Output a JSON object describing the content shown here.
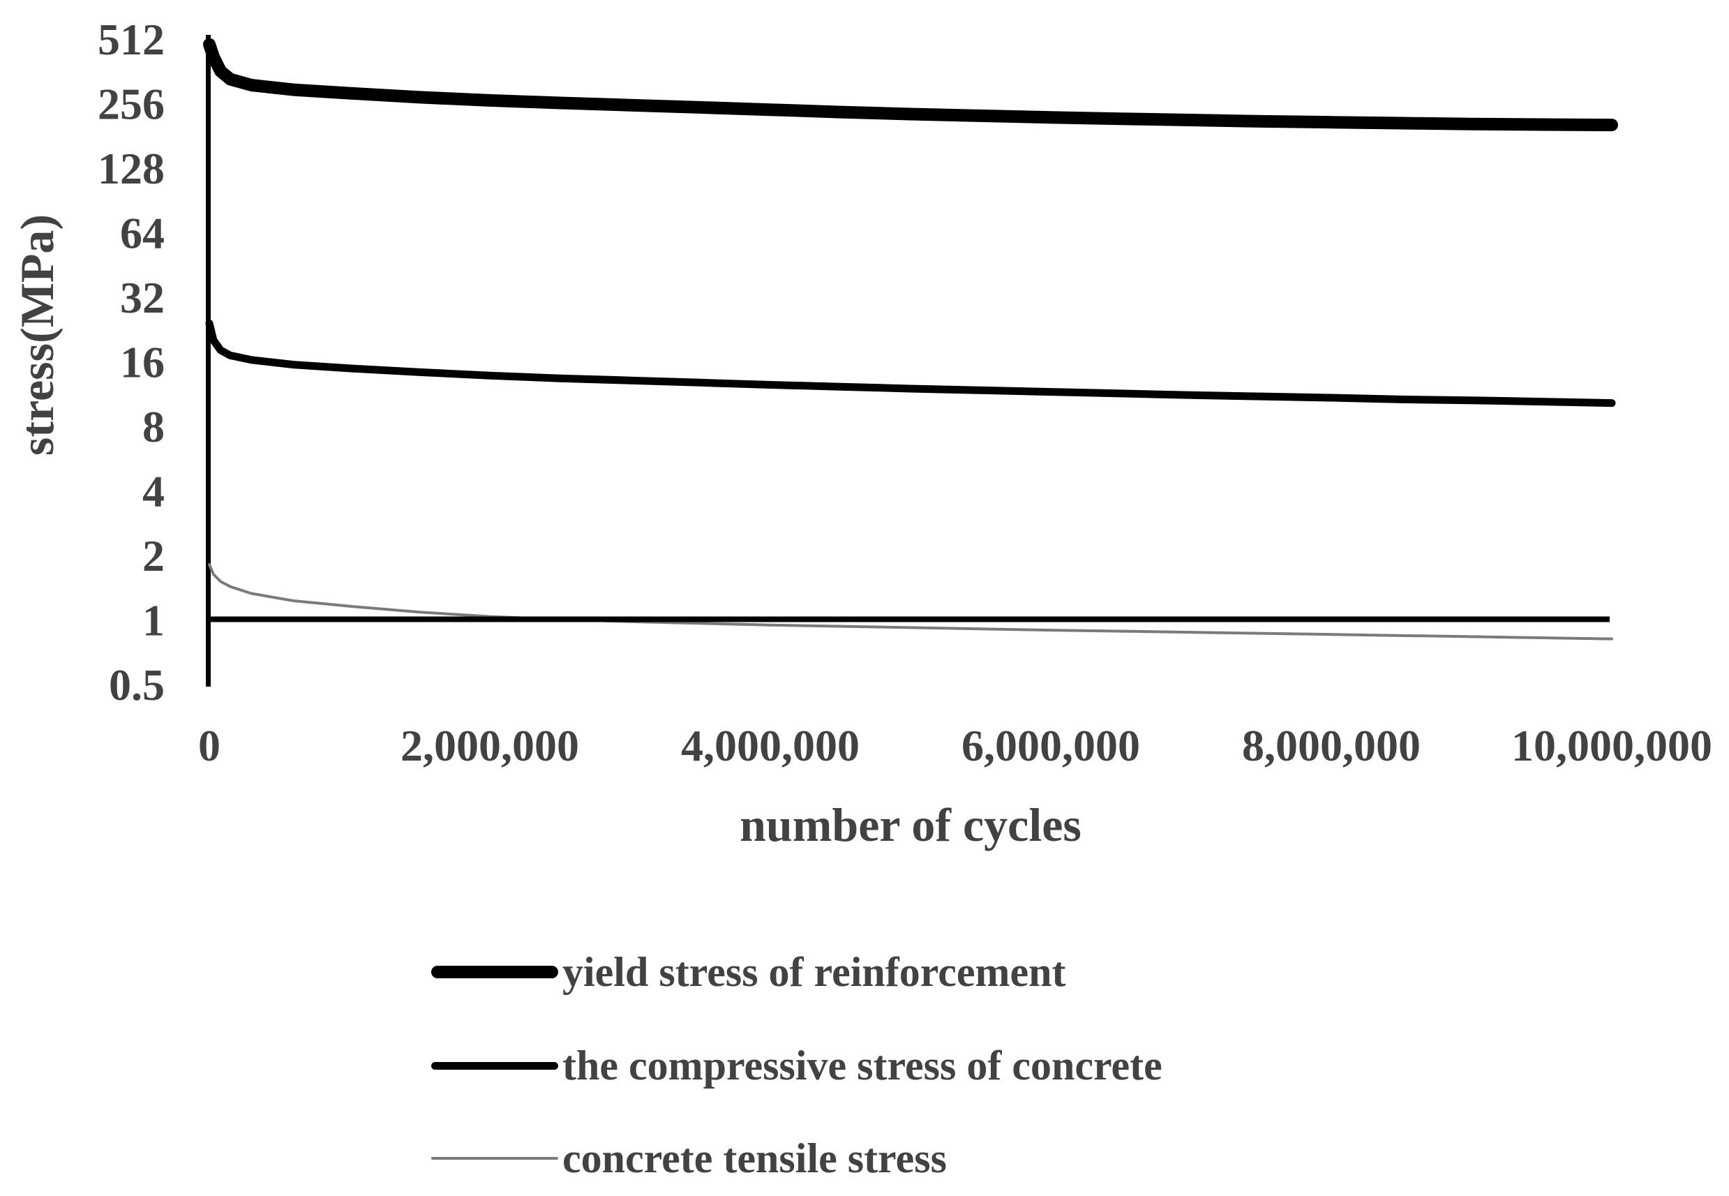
{
  "page": {
    "background_color": "#ffffff",
    "text_color": "#424242",
    "axis_line_color": "#000000"
  },
  "chart_data": {
    "type": "line",
    "title": "",
    "xlabel": "number of cycles",
    "ylabel": "stress(MPa)",
    "grid": "off",
    "legend_position": "bottom-left",
    "x_axis": {
      "min": 0,
      "max": 10000000,
      "tick_values": [
        0,
        2000000,
        4000000,
        6000000,
        8000000,
        10000000
      ],
      "tick_labels": [
        "0",
        "2,000,000",
        "4,000,000",
        "6,000,000",
        "8,000,000",
        "10,000,000"
      ]
    },
    "y_axis": {
      "scale": "log2",
      "min": 0.5,
      "max": 512,
      "axis_crosses_at": 1,
      "tick_values": [
        512,
        256,
        128,
        64,
        32,
        16,
        8,
        4,
        2,
        1,
        0.5
      ],
      "tick_labels": [
        "512",
        "256",
        "128",
        "64",
        "32",
        "16",
        "8",
        "4",
        "2",
        "1",
        "0.5"
      ]
    },
    "series": [
      {
        "name": "yield stress of reinforcement",
        "color": "#000000",
        "stroke_width": 18,
        "points": [
          [
            0,
            480
          ],
          [
            30000,
            420
          ],
          [
            80000,
            360
          ],
          [
            150000,
            330
          ],
          [
            300000,
            310
          ],
          [
            600000,
            295
          ],
          [
            1000000,
            284
          ],
          [
            1500000,
            272
          ],
          [
            2000000,
            263
          ],
          [
            2500000,
            256
          ],
          [
            3000000,
            250
          ],
          [
            3500000,
            244
          ],
          [
            4000000,
            238
          ],
          [
            4500000,
            232
          ],
          [
            5000000,
            227
          ],
          [
            5500000,
            223
          ],
          [
            6000000,
            219
          ],
          [
            6500000,
            216
          ],
          [
            7000000,
            213
          ],
          [
            7500000,
            210
          ],
          [
            8000000,
            208
          ],
          [
            8500000,
            206
          ],
          [
            9000000,
            204
          ],
          [
            9500000,
            203
          ],
          [
            10000000,
            202
          ]
        ]
      },
      {
        "name": "the compressive stress of concrete",
        "color": "#000000",
        "stroke_width": 11,
        "points": [
          [
            0,
            24
          ],
          [
            30000,
            20
          ],
          [
            80000,
            18
          ],
          [
            150000,
            17
          ],
          [
            300000,
            16.2
          ],
          [
            600000,
            15.4
          ],
          [
            1000000,
            14.8
          ],
          [
            1500000,
            14.2
          ],
          [
            2000000,
            13.7
          ],
          [
            2500000,
            13.3
          ],
          [
            3000000,
            13.0
          ],
          [
            3500000,
            12.7
          ],
          [
            4000000,
            12.4
          ],
          [
            4500000,
            12.15
          ],
          [
            5000000,
            11.9
          ],
          [
            5500000,
            11.7
          ],
          [
            6000000,
            11.5
          ],
          [
            6500000,
            11.3
          ],
          [
            7000000,
            11.1
          ],
          [
            7500000,
            10.95
          ],
          [
            8000000,
            10.8
          ],
          [
            8500000,
            10.6
          ],
          [
            9000000,
            10.5
          ],
          [
            9500000,
            10.35
          ],
          [
            10000000,
            10.2
          ]
        ]
      },
      {
        "name": "concrete tensile stress",
        "color": "#7a7a7a",
        "stroke_width": 4,
        "points": [
          [
            0,
            1.8
          ],
          [
            30000,
            1.62
          ],
          [
            80000,
            1.5
          ],
          [
            150000,
            1.42
          ],
          [
            300000,
            1.32
          ],
          [
            600000,
            1.22
          ],
          [
            1000000,
            1.15
          ],
          [
            1500000,
            1.08
          ],
          [
            2000000,
            1.03
          ],
          [
            2500000,
            1.0
          ],
          [
            3000000,
            0.975
          ],
          [
            4000000,
            0.94
          ],
          [
            5000000,
            0.915
          ],
          [
            6000000,
            0.89
          ],
          [
            7000000,
            0.87
          ],
          [
            8000000,
            0.85
          ],
          [
            9000000,
            0.83
          ],
          [
            10000000,
            0.81
          ]
        ]
      }
    ]
  }
}
